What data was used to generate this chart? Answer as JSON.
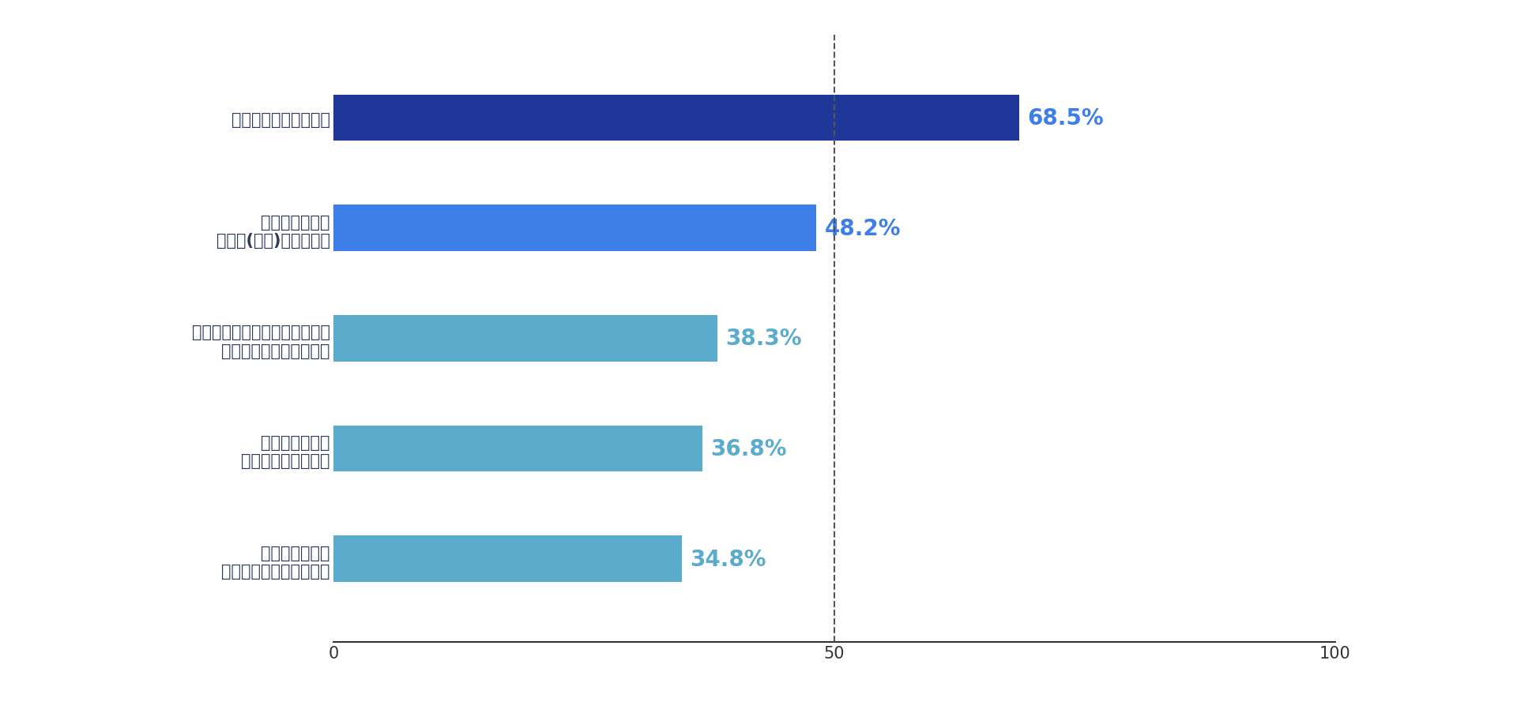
{
  "categories": [
    "夜一人で歩いている時",
    "街灯や人通りの\n少ない(ない)道を歩く時",
    "携帯電話などに知らない番号や\n非通知の着信があった時",
    "エレベーターで\n二人きりになった時",
    "外を歩いていて\n後ろで靴音が聞こえた時"
  ],
  "values": [
    68.5,
    48.2,
    38.3,
    36.8,
    34.8
  ],
  "bar_colors": [
    "#1e3799",
    "#3d7fe6",
    "#5aabcc",
    "#5aabcc",
    "#5aabcc"
  ],
  "value_colors": [
    "#3d7fe6",
    "#3d7fe6",
    "#5aabcc",
    "#5aabcc",
    "#5aabcc"
  ],
  "background_color": "#ffffff",
  "xlim": [
    0,
    100
  ],
  "xticks": [
    0,
    50,
    100
  ],
  "dashed_line_x": 50,
  "label_fontsize": 15,
  "value_fontsize": 20,
  "tick_fontsize": 15,
  "bar_height": 0.42,
  "fig_width": 19.2,
  "fig_height": 9.04
}
